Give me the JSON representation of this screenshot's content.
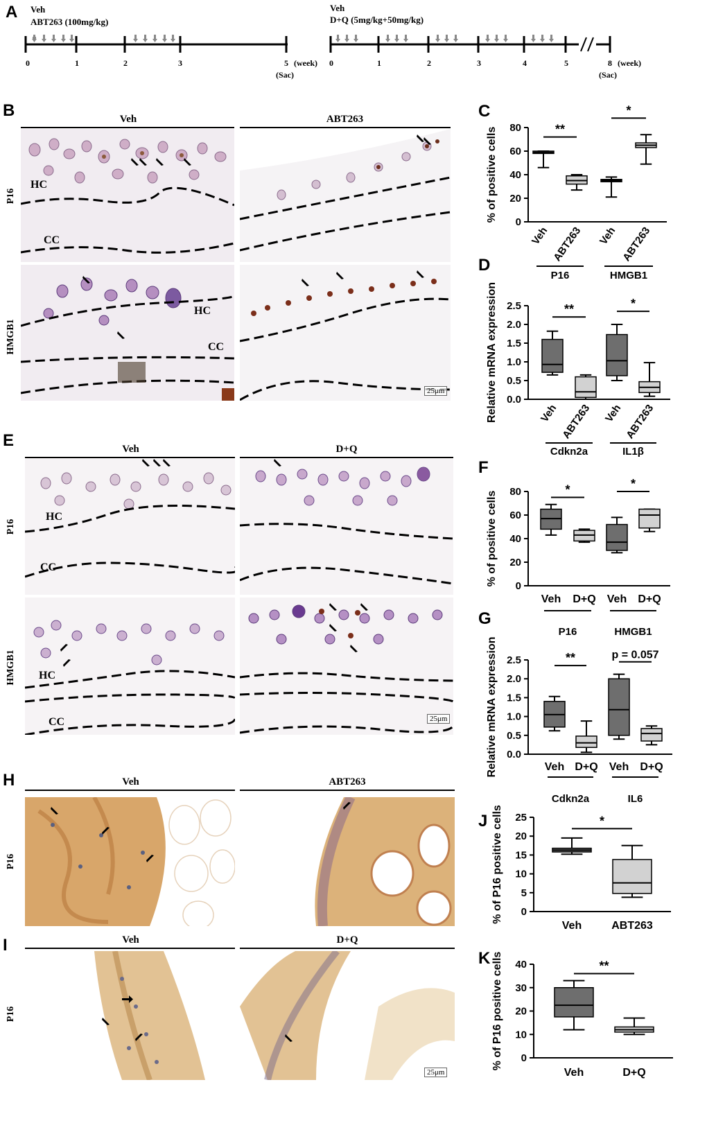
{
  "panels": {
    "A": {
      "letter": "A",
      "left": {
        "line1": "Veh",
        "line2": "ABT263 (100mg/kg)",
        "ticks": [
          "0",
          "1",
          "2",
          "3",
          "5"
        ],
        "unit": "(week)",
        "sac": "(Sac)"
      },
      "right": {
        "line1": "Veh",
        "line2": "D+Q (5mg/kg+50mg/kg)",
        "ticks": [
          "0",
          "1",
          "2",
          "3",
          "4",
          "5",
          "8"
        ],
        "unit": "(week)",
        "sac": "(Sac)"
      }
    },
    "B": {
      "letter": "B",
      "col1": "Veh",
      "col2": "ABT263",
      "row1": "P16",
      "row2": "HMGB1",
      "hc": "HC",
      "cc": "CC",
      "scale": "25μm"
    },
    "E": {
      "letter": "E",
      "col1": "Veh",
      "col2": "D+Q",
      "row1": "P16",
      "row2": "HMGB1",
      "hc": "HC",
      "cc": "CC",
      "scale": "25μm"
    },
    "H": {
      "letter": "H",
      "col1": "Veh",
      "col2": "ABT263",
      "row1": "P16"
    },
    "I": {
      "letter": "I",
      "col1": "Veh",
      "col2": "D+Q",
      "row1": "P16",
      "scale": "25μm"
    }
  },
  "colors": {
    "veh_box": "#6e6e6e",
    "treat_box": "#d2d2d2",
    "axis": "#000000"
  },
  "chart_data": [
    {
      "id": "C",
      "type": "box",
      "letter": "C",
      "ylabel": "% of positive cells",
      "ylim": [
        0,
        80
      ],
      "yticks": [
        "0",
        "20",
        "40",
        "60",
        "80"
      ],
      "categories": [
        "Veh",
        "ABT263",
        "Veh",
        "ABT263"
      ],
      "groups": [
        {
          "label": "P16",
          "span": [
            0,
            1
          ]
        },
        {
          "label": "HMGB1",
          "span": [
            2,
            3
          ]
        }
      ],
      "boxes": [
        {
          "min": 46,
          "q1": 58,
          "median": 59,
          "q3": 60,
          "max": 60,
          "fill": "dark"
        },
        {
          "min": 27,
          "q1": 32,
          "median": 35,
          "q3": 39,
          "max": 40,
          "fill": "light"
        },
        {
          "min": 21,
          "q1": 34,
          "median": 35,
          "q3": 36,
          "max": 38,
          "fill": "dark"
        },
        {
          "min": 49,
          "q1": 63,
          "median": 65,
          "q3": 67,
          "max": 74,
          "fill": "light"
        }
      ],
      "sig": [
        {
          "pair": [
            0,
            1
          ],
          "text": "**",
          "y": 72
        },
        {
          "pair": [
            2,
            3
          ],
          "text": "*",
          "y": 88
        }
      ]
    },
    {
      "id": "D",
      "type": "box",
      "letter": "D",
      "ylabel": "Relative mRNA expression",
      "ylim": [
        0,
        2.5
      ],
      "yticks": [
        "0.0",
        "0.5",
        "1.0",
        "1.5",
        "2.0",
        "2.5"
      ],
      "categories": [
        "Veh",
        "ABT263",
        "Veh",
        "ABT263"
      ],
      "groups": [
        {
          "label": "Cdkn2a",
          "span": [
            0,
            1
          ]
        },
        {
          "label": "IL1β",
          "span": [
            2,
            3
          ]
        }
      ],
      "boxes": [
        {
          "min": 0.65,
          "q1": 0.72,
          "median": 0.93,
          "q3": 1.6,
          "max": 1.82,
          "fill": "dark"
        },
        {
          "min": 0.0,
          "q1": 0.05,
          "median": 0.2,
          "q3": 0.6,
          "max": 0.65,
          "fill": "light"
        },
        {
          "min": 0.5,
          "q1": 0.63,
          "median": 1.03,
          "q3": 1.73,
          "max": 2.0,
          "fill": "dark"
        },
        {
          "min": 0.08,
          "q1": 0.18,
          "median": 0.32,
          "q3": 0.47,
          "max": 0.98,
          "fill": "light"
        }
      ],
      "sig": [
        {
          "pair": [
            0,
            1
          ],
          "text": "**",
          "y": 2.2
        },
        {
          "pair": [
            2,
            3
          ],
          "text": "*",
          "y": 2.35
        }
      ]
    },
    {
      "id": "F",
      "type": "box",
      "letter": "F",
      "ylabel": "% of positive cells",
      "ylim": [
        0,
        80
      ],
      "yticks": [
        "0",
        "20",
        "40",
        "60",
        "80"
      ],
      "categories": [
        "Veh",
        "D+Q",
        "Veh",
        "D+Q"
      ],
      "groups": [
        {
          "label": "P16",
          "span": [
            0,
            1
          ]
        },
        {
          "label": "HMGB1",
          "span": [
            2,
            3
          ]
        }
      ],
      "boxes": [
        {
          "min": 43,
          "q1": 48,
          "median": 57,
          "q3": 65,
          "max": 69,
          "fill": "dark"
        },
        {
          "min": 37,
          "q1": 38,
          "median": 43,
          "q3": 47,
          "max": 48,
          "fill": "light"
        },
        {
          "min": 28,
          "q1": 30,
          "median": 37,
          "q3": 52,
          "max": 58,
          "fill": "dark"
        },
        {
          "min": 46,
          "q1": 49,
          "median": 60,
          "q3": 65,
          "max": 65,
          "fill": "light"
        }
      ],
      "sig": [
        {
          "pair": [
            0,
            1
          ],
          "text": "*",
          "y": 75
        },
        {
          "pair": [
            2,
            3
          ],
          "text": "*",
          "y": 80
        }
      ]
    },
    {
      "id": "G",
      "type": "box",
      "letter": "G",
      "ylabel": "Relative mRNA expression",
      "ylim": [
        0,
        2.5
      ],
      "yticks": [
        "0.0",
        "0.5",
        "1.0",
        "1.5",
        "2.0",
        "2.5"
      ],
      "categories": [
        "Veh",
        "D+Q",
        "Veh",
        "D+Q"
      ],
      "groups": [
        {
          "label": "Cdkn2a",
          "span": [
            0,
            1
          ]
        },
        {
          "label": "IL6",
          "span": [
            2,
            3
          ]
        }
      ],
      "boxes": [
        {
          "min": 0.62,
          "q1": 0.72,
          "median": 1.05,
          "q3": 1.4,
          "max": 1.53,
          "fill": "dark"
        },
        {
          "min": 0.05,
          "q1": 0.18,
          "median": 0.3,
          "q3": 0.48,
          "max": 0.88,
          "fill": "light"
        },
        {
          "min": 0.4,
          "q1": 0.5,
          "median": 1.18,
          "q3": 2.0,
          "max": 2.12,
          "fill": "dark"
        },
        {
          "min": 0.25,
          "q1": 0.35,
          "median": 0.55,
          "q3": 0.68,
          "max": 0.75,
          "fill": "light"
        }
      ],
      "sig": [
        {
          "pair": [
            0,
            1
          ],
          "text": "**",
          "y": 2.35
        },
        {
          "pair": [
            2,
            3
          ],
          "text": "p = 0.057",
          "y": 2.45
        }
      ]
    },
    {
      "id": "J",
      "type": "box",
      "letter": "J",
      "ylabel": "% of P16 positive cells",
      "ylim": [
        0,
        25
      ],
      "yticks": [
        "0",
        "5",
        "10",
        "15",
        "20",
        "25"
      ],
      "categories": [
        "Veh",
        "ABT263"
      ],
      "groups": [],
      "boxes": [
        {
          "min": 15.2,
          "q1": 15.8,
          "median": 16.3,
          "q3": 16.8,
          "max": 19.5,
          "fill": "dark"
        },
        {
          "min": 3.8,
          "q1": 4.8,
          "median": 7.6,
          "q3": 13.8,
          "max": 17.5,
          "fill": "light"
        }
      ],
      "sig": [
        {
          "pair": [
            0,
            1
          ],
          "text": "*",
          "y": 22
        }
      ]
    },
    {
      "id": "K",
      "type": "box",
      "letter": "K",
      "ylabel": "% of P16 positive cells",
      "ylim": [
        0,
        40
      ],
      "yticks": [
        "0",
        "10",
        "20",
        "30",
        "40"
      ],
      "categories": [
        "Veh",
        "D+Q"
      ],
      "groups": [],
      "boxes": [
        {
          "min": 12,
          "q1": 17.5,
          "median": 22.5,
          "q3": 30,
          "max": 33,
          "fill": "dark"
        },
        {
          "min": 10,
          "q1": 11,
          "median": 12,
          "q3": 13.2,
          "max": 17,
          "fill": "light"
        }
      ],
      "sig": [
        {
          "pair": [
            0,
            1
          ],
          "text": "**",
          "y": 36
        }
      ]
    }
  ]
}
